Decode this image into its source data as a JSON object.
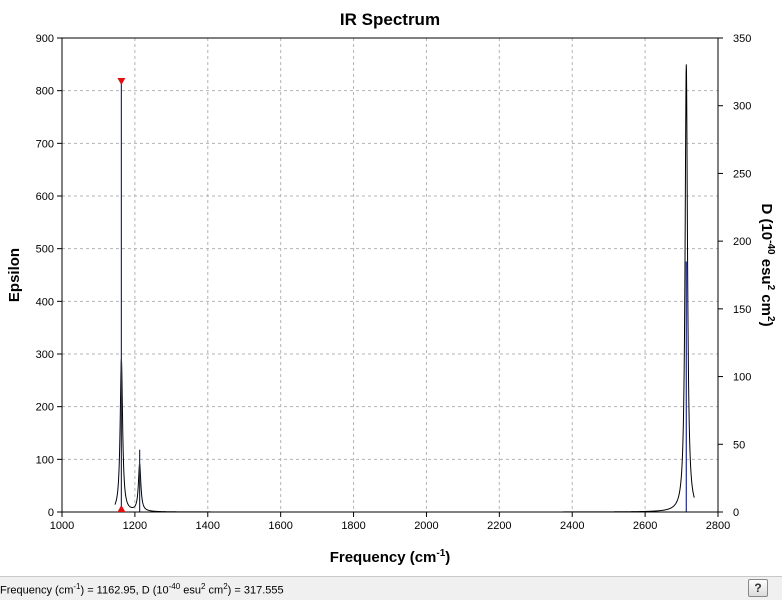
{
  "chart_data": {
    "type": "line",
    "title": "IR Spectrum",
    "xlabel": "Frequency",
    "xlabel_unit_base": "cm",
    "xlabel_unit_sup": "-1",
    "ylabel_left": "Epsilon",
    "ylabel_right_parts": {
      "prefix": "D (10",
      "sup1": "-40",
      "mid": " esu",
      "sup2": "2",
      "mid2": " cm",
      "sup3": "2",
      "suffix": ")"
    },
    "xlim": [
      1000,
      2800
    ],
    "ylim_left": [
      0,
      900
    ],
    "ylim_right": [
      0,
      350
    ],
    "x_ticks": [
      1000,
      1200,
      1400,
      1600,
      1800,
      2000,
      2200,
      2400,
      2600,
      2800
    ],
    "y_ticks_left": [
      0,
      100,
      200,
      300,
      400,
      500,
      600,
      700,
      800,
      900
    ],
    "y_ticks_right": [
      0,
      50,
      100,
      150,
      200,
      250,
      300,
      350
    ],
    "grid": true,
    "spectrum_peaks": [
      {
        "x": 1162.95,
        "epsilon": 290
      },
      {
        "x": 1213,
        "epsilon": 90
      },
      {
        "x": 2713,
        "epsilon": 850
      }
    ],
    "stick_lines": [
      {
        "x": 1162.95,
        "d": 317.555
      },
      {
        "x": 1213,
        "d": 46
      },
      {
        "x": 2713,
        "d": 185
      }
    ],
    "selected_marker": {
      "x": 1162.95,
      "d": 317.555
    },
    "colors": {
      "spectrum": "#000000",
      "sticks": "#1f2a8a",
      "marker": "#e01010",
      "grid": "#b4b4b4"
    }
  },
  "status_bar": {
    "freq_label": "Frequency (cm",
    "freq_sup": "-1",
    "freq_mid": ") = 1162.95, D (10",
    "d_sup1": "-40",
    "d_mid": " esu",
    "d_sup2": "2",
    "d_mid2": " cm",
    "d_sup3": "2",
    "d_end": ") = 317.555",
    "help_icon_glyph": "?"
  }
}
